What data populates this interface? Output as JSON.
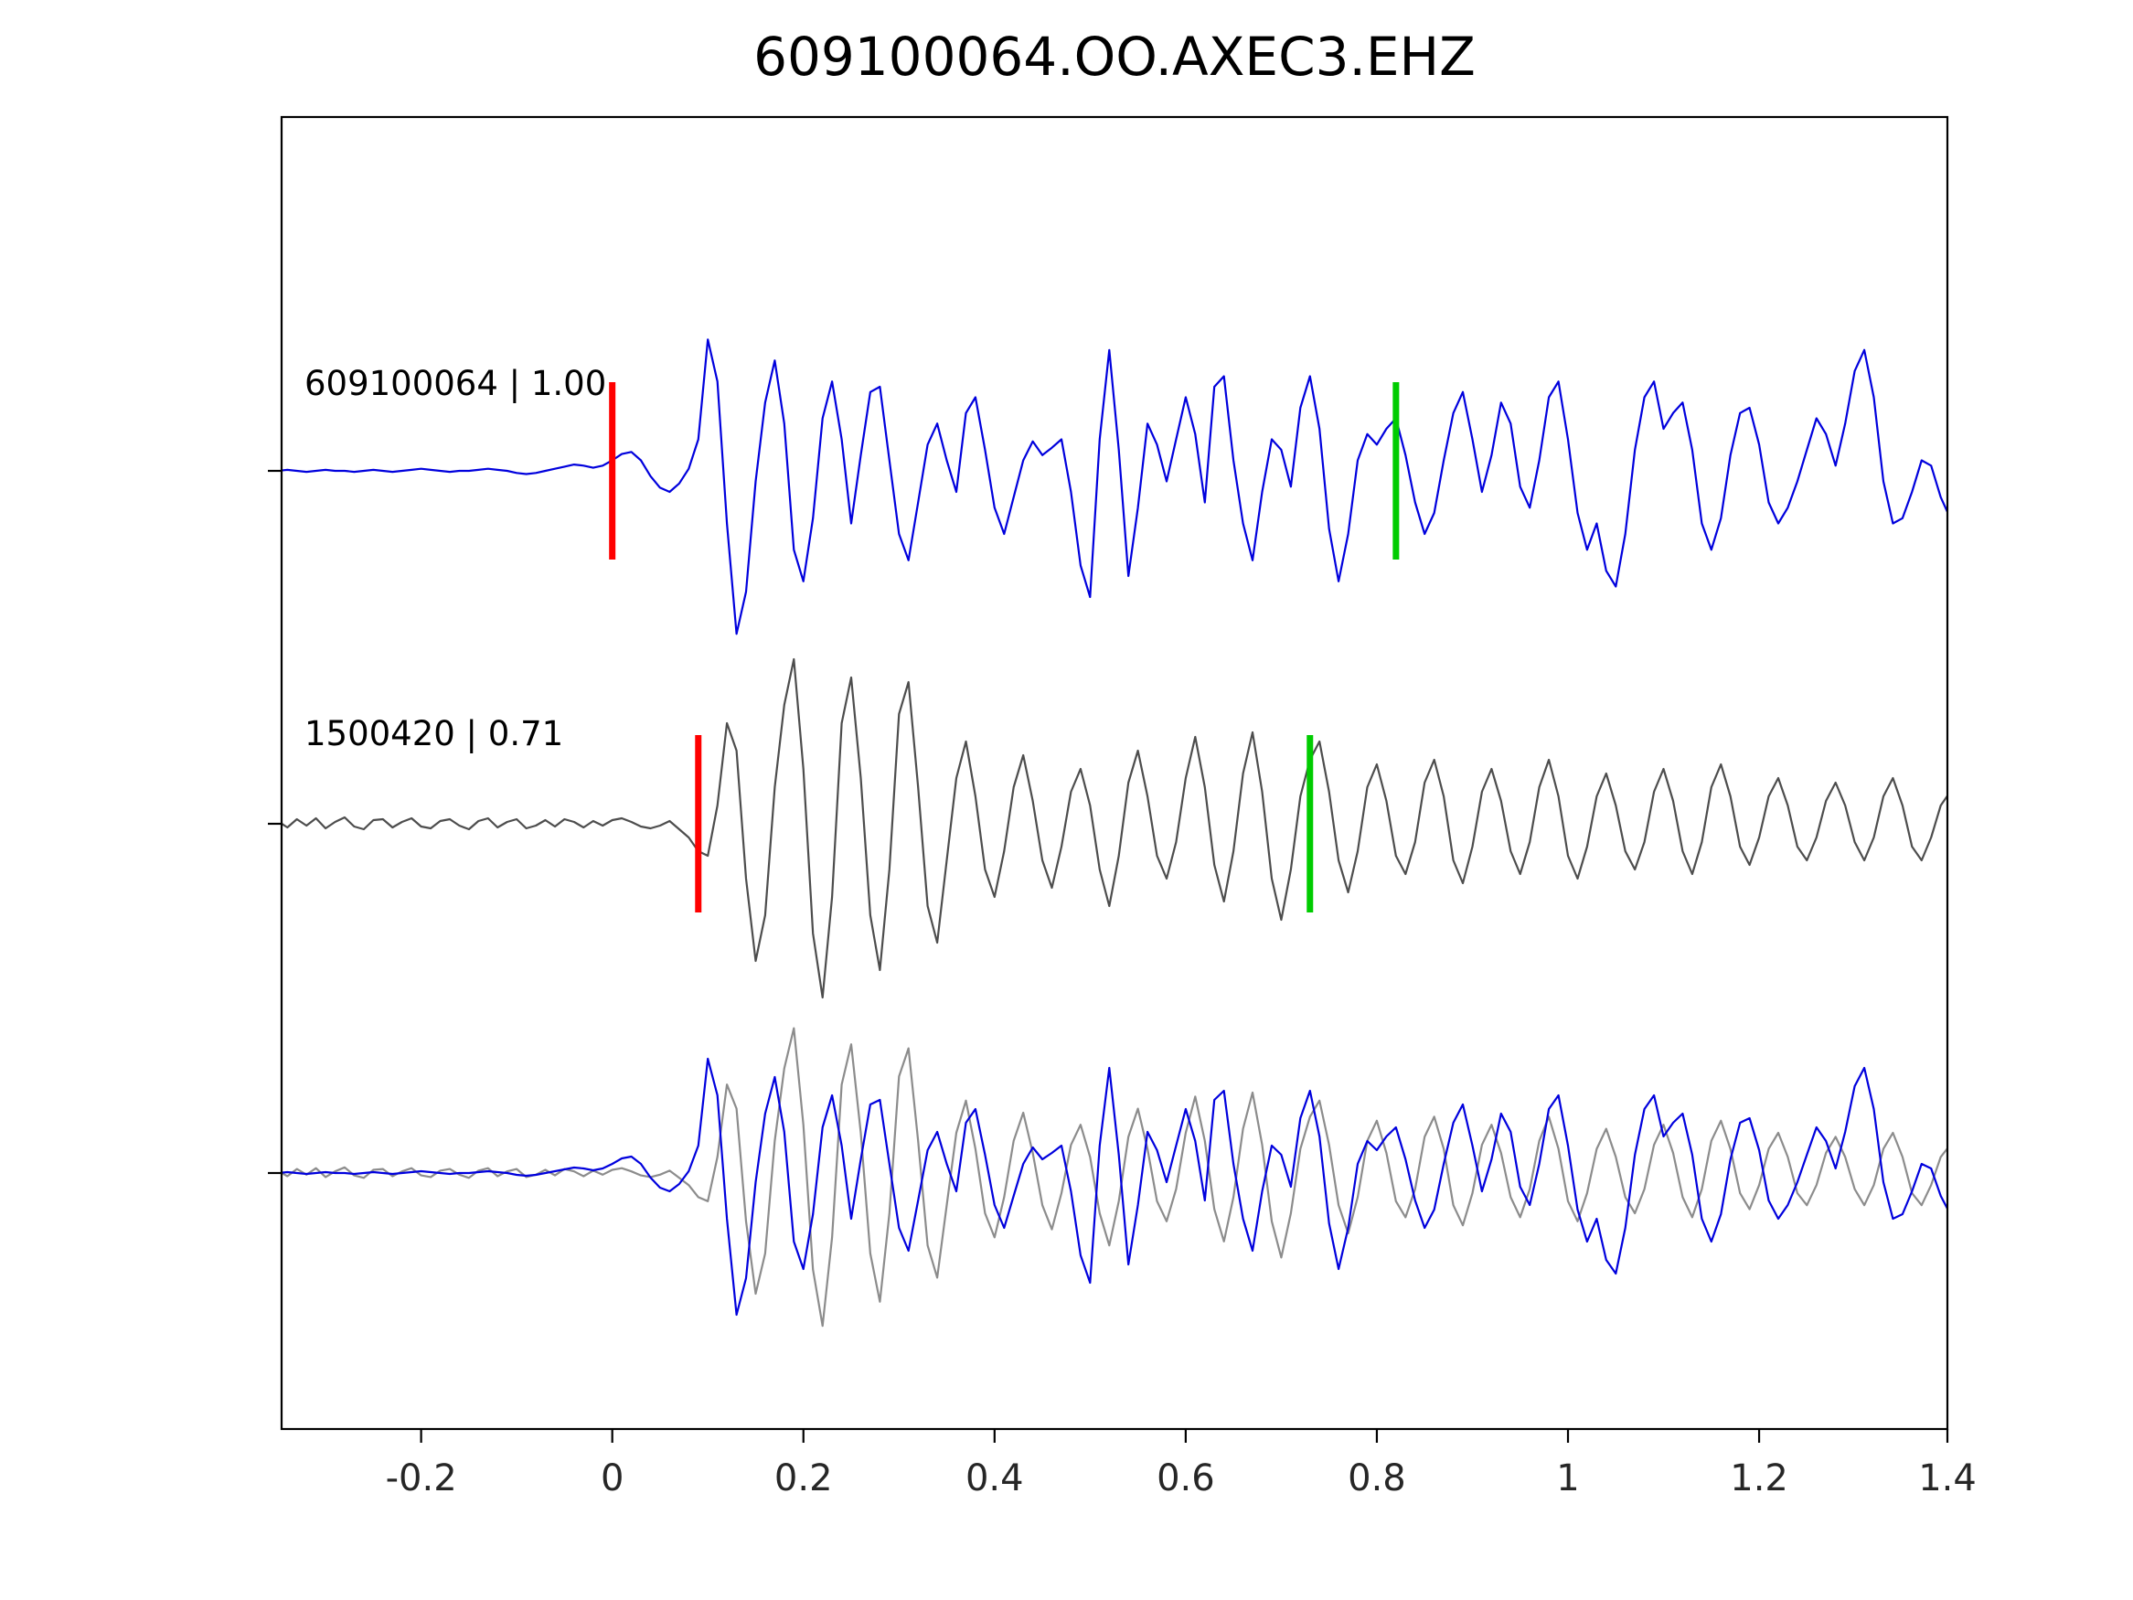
{
  "title": "609100064.OO.AXEC3.EHZ",
  "colors": {
    "template_trace": "#0000dd",
    "match_trace": "#4d4d4d",
    "overlay_match_trace": "#8c8c8c",
    "pick_red": "#ff0000",
    "pick_green": "#00cc00",
    "axis": "#000000",
    "tick_label": "#262626",
    "trace_label": "#000000"
  },
  "chart_data": {
    "type": "line",
    "title": "609100064.OO.AXEC3.EHZ",
    "xlabel": "",
    "ylabel": "",
    "xlim": [
      -0.346,
      1.397
    ],
    "x_ticks": [
      -0.2,
      0,
      0.2,
      0.4,
      0.6,
      0.8,
      1,
      1.2,
      1.4
    ],
    "x_tick_labels": [
      "-0.2",
      "0",
      "0.2",
      "0.4",
      "0.6",
      "0.8",
      "1",
      "1.2",
      "1.4"
    ],
    "grid": false,
    "legend": "none",
    "sample_x0": -0.35,
    "sample_dx": 0.01,
    "traces": [
      {
        "id": "template",
        "label": "609100064 | 1.00",
        "event_id": "609100064",
        "correlation": "1.00",
        "color": "#0000dd",
        "row": 0,
        "values": [
          0.0,
          0.01,
          0.0,
          -0.01,
          0.0,
          0.01,
          0.0,
          0.0,
          -0.01,
          0.0,
          0.01,
          0.0,
          -0.01,
          0.0,
          0.01,
          0.02,
          0.01,
          0.0,
          -0.01,
          0.0,
          0.0,
          0.01,
          0.02,
          0.01,
          0.0,
          -0.02,
          -0.03,
          -0.02,
          0.0,
          0.02,
          0.04,
          0.06,
          0.05,
          0.03,
          0.05,
          0.1,
          0.16,
          0.18,
          0.1,
          -0.05,
          -0.16,
          -0.2,
          -0.12,
          0.02,
          0.3,
          1.25,
          0.85,
          -0.5,
          -1.55,
          -1.15,
          -0.1,
          0.65,
          1.05,
          0.45,
          -0.75,
          -1.05,
          -0.45,
          0.5,
          0.85,
          0.3,
          -0.5,
          0.15,
          0.75,
          0.8,
          0.1,
          -0.6,
          -0.85,
          -0.3,
          0.25,
          0.45,
          0.1,
          -0.2,
          0.55,
          0.7,
          0.2,
          -0.35,
          -0.6,
          -0.25,
          0.1,
          0.28,
          0.15,
          0.22,
          0.3,
          -0.2,
          -0.9,
          -1.2,
          0.3,
          1.15,
          0.2,
          -1.0,
          -0.35,
          0.45,
          0.25,
          -0.1,
          0.3,
          0.7,
          0.35,
          -0.3,
          0.8,
          0.9,
          0.1,
          -0.5,
          -0.85,
          -0.2,
          0.3,
          0.2,
          -0.15,
          0.6,
          0.9,
          0.4,
          -0.55,
          -1.05,
          -0.6,
          0.1,
          0.35,
          0.25,
          0.4,
          0.5,
          0.15,
          -0.3,
          -0.6,
          -0.4,
          0.1,
          0.55,
          0.75,
          0.3,
          -0.2,
          0.15,
          0.65,
          0.45,
          -0.15,
          -0.35,
          0.1,
          0.7,
          0.85,
          0.3,
          -0.4,
          -0.75,
          -0.5,
          -0.95,
          -1.1,
          -0.6,
          0.2,
          0.7,
          0.85,
          0.4,
          0.55,
          0.65,
          0.2,
          -0.5,
          -0.75,
          -0.45,
          0.15,
          0.55,
          0.6,
          0.25,
          -0.3,
          -0.5,
          -0.35,
          -0.1,
          0.2,
          0.5,
          0.35,
          0.05,
          0.45,
          0.95,
          1.15,
          0.7,
          -0.1,
          -0.5,
          -0.45,
          -0.2,
          0.1,
          0.05,
          -0.25,
          -0.45,
          -0.3
        ]
      },
      {
        "id": "match",
        "label": "1500420 | 0.71",
        "event_id": "1500420",
        "correlation": "0.71",
        "color": "#4d4d4d",
        "row": 1,
        "values": [
          0.03,
          -0.04,
          0.05,
          -0.02,
          0.06,
          -0.05,
          0.02,
          0.07,
          -0.03,
          -0.06,
          0.04,
          0.05,
          -0.04,
          0.02,
          0.06,
          -0.03,
          -0.05,
          0.03,
          0.05,
          -0.02,
          -0.06,
          0.03,
          0.06,
          -0.04,
          0.02,
          0.05,
          -0.05,
          -0.02,
          0.04,
          -0.03,
          0.05,
          0.02,
          -0.04,
          0.03,
          -0.02,
          0.04,
          0.06,
          0.02,
          -0.03,
          -0.05,
          -0.02,
          0.03,
          -0.06,
          -0.15,
          -0.3,
          -0.35,
          0.2,
          1.1,
          0.8,
          -0.6,
          -1.5,
          -1.0,
          0.4,
          1.3,
          1.8,
          0.6,
          -1.2,
          -1.9,
          -0.8,
          1.1,
          1.6,
          0.5,
          -1.0,
          -1.6,
          -0.5,
          1.2,
          1.55,
          0.4,
          -0.9,
          -1.3,
          -0.4,
          0.5,
          0.9,
          0.3,
          -0.5,
          -0.8,
          -0.3,
          0.4,
          0.75,
          0.25,
          -0.4,
          -0.7,
          -0.25,
          0.35,
          0.6,
          0.2,
          -0.5,
          -0.9,
          -0.35,
          0.45,
          0.8,
          0.3,
          -0.35,
          -0.6,
          -0.2,
          0.5,
          0.95,
          0.4,
          -0.45,
          -0.85,
          -0.3,
          0.55,
          1.0,
          0.35,
          -0.6,
          -1.05,
          -0.5,
          0.3,
          0.7,
          0.9,
          0.35,
          -0.4,
          -0.75,
          -0.3,
          0.4,
          0.65,
          0.25,
          -0.35,
          -0.55,
          -0.2,
          0.45,
          0.7,
          0.3,
          -0.4,
          -0.65,
          -0.25,
          0.35,
          0.6,
          0.25,
          -0.3,
          -0.55,
          -0.2,
          0.4,
          0.7,
          0.3,
          -0.35,
          -0.6,
          -0.25,
          0.3,
          0.55,
          0.2,
          -0.3,
          -0.5,
          -0.2,
          0.35,
          0.6,
          0.25,
          -0.3,
          -0.55,
          -0.2,
          0.4,
          0.65,
          0.3,
          -0.25,
          -0.45,
          -0.15,
          0.3,
          0.5,
          0.2,
          -0.25,
          -0.4,
          -0.15,
          0.25,
          0.45,
          0.2,
          -0.2,
          -0.4,
          -0.15,
          0.3,
          0.5,
          0.2,
          -0.25,
          -0.4,
          -0.15,
          0.2,
          0.35,
          0.15
        ]
      }
    ],
    "overlay": {
      "row": 2,
      "series": [
        {
          "ref": "match",
          "color": "#8c8c8c",
          "x_shift": 0
        },
        {
          "ref": "template",
          "color": "#0000dd",
          "x_shift": 0
        }
      ]
    },
    "picks": [
      {
        "row": 0,
        "x": 0.0,
        "color": "#ff0000",
        "kind": "red-pick"
      },
      {
        "row": 0,
        "x": 0.82,
        "color": "#00cc00",
        "kind": "green-pick"
      },
      {
        "row": 1,
        "x": 0.09,
        "color": "#ff0000",
        "kind": "red-pick"
      },
      {
        "row": 1,
        "x": 0.73,
        "color": "#00cc00",
        "kind": "green-pick"
      }
    ]
  }
}
